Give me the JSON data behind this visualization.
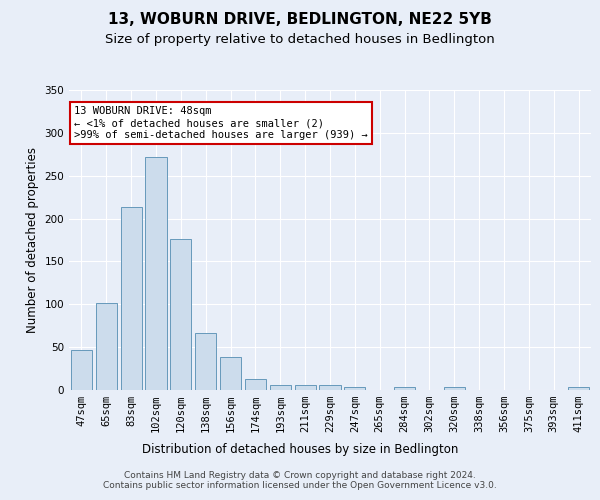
{
  "title": "13, WOBURN DRIVE, BEDLINGTON, NE22 5YB",
  "subtitle": "Size of property relative to detached houses in Bedlington",
  "xlabel": "Distribution of detached houses by size in Bedlington",
  "ylabel": "Number of detached properties",
  "categories": [
    "47sqm",
    "65sqm",
    "83sqm",
    "102sqm",
    "120sqm",
    "138sqm",
    "156sqm",
    "174sqm",
    "193sqm",
    "211sqm",
    "229sqm",
    "247sqm",
    "265sqm",
    "284sqm",
    "302sqm",
    "320sqm",
    "338sqm",
    "356sqm",
    "375sqm",
    "393sqm",
    "411sqm"
  ],
  "values": [
    47,
    101,
    214,
    272,
    176,
    66,
    38,
    13,
    6,
    6,
    6,
    4,
    0,
    3,
    0,
    3,
    0,
    0,
    0,
    0,
    3
  ],
  "bar_color": "#ccdcec",
  "bar_edge_color": "#6699bb",
  "annotation_line1": "13 WOBURN DRIVE: 48sqm",
  "annotation_line2": "← <1% of detached houses are smaller (2)",
  "annotation_line3": ">99% of semi-detached houses are larger (939) →",
  "annotation_box_color": "#ffffff",
  "annotation_box_edge_color": "#cc0000",
  "footer_text": "Contains HM Land Registry data © Crown copyright and database right 2024.\nContains public sector information licensed under the Open Government Licence v3.0.",
  "ylim": [
    0,
    350
  ],
  "yticks": [
    0,
    50,
    100,
    150,
    200,
    250,
    300,
    350
  ],
  "bg_color": "#e8eef8",
  "plot_bg_color": "#e8eef8",
  "grid_color": "#ffffff",
  "title_fontsize": 11,
  "subtitle_fontsize": 9.5,
  "ylabel_fontsize": 8.5,
  "xlabel_fontsize": 8.5,
  "tick_fontsize": 7.5,
  "footer_fontsize": 6.5,
  "ann_fontsize": 7.5
}
